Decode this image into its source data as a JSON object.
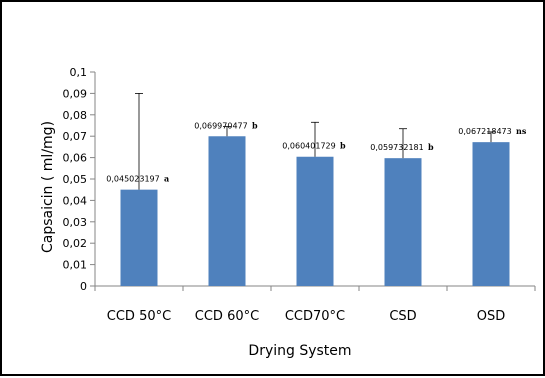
{
  "chart_data": {
    "type": "bar",
    "title": "",
    "xlabel": "Drying System",
    "ylabel": "Capsaicin ( ml/mg)",
    "categories": [
      "CCD 50°C",
      "CCD 60°C",
      "CCD70°C",
      "CSD",
      "OSD"
    ],
    "values": [
      0.045023197,
      0.069970477,
      0.060401729,
      0.059732181,
      0.067218473
    ],
    "data_labels": [
      "0,045023197",
      "0,069970477",
      "0,060401729",
      "0,059732181",
      "0,067218473"
    ],
    "significance": [
      "a",
      "b",
      "b",
      "b",
      "ns"
    ],
    "error_upper": [
      0.09,
      0.0745,
      0.0765,
      0.0735,
      0.072
    ],
    "ylim": [
      0,
      0.1
    ],
    "yticks": [
      0,
      0.01,
      0.02,
      0.03,
      0.04,
      0.05,
      0.06,
      0.07,
      0.08,
      0.09,
      0.1
    ],
    "ytick_labels": [
      "0",
      "0,01",
      "0,02",
      "0,03",
      "0,04",
      "0,05",
      "0,06",
      "0,07",
      "0,08",
      "0,09",
      "0,1"
    ],
    "grid": false,
    "legend": "none",
    "bar_color": "#4F81BD"
  }
}
